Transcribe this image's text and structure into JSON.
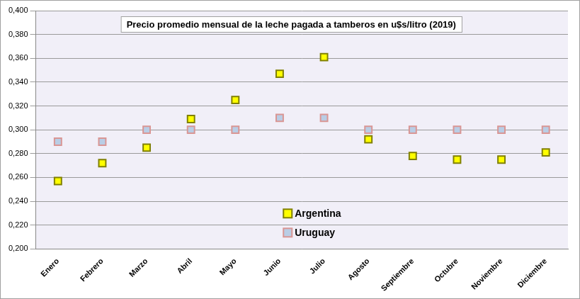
{
  "chart_data": {
    "type": "scatter",
    "title": "Precio promedio mensual de la leche pagada a tamberos en u$s/litro (2019)",
    "categories": [
      "Enero",
      "Febrero",
      "Marzo",
      "Abril",
      "Mayo",
      "Junio",
      "Julio",
      "Agosto",
      "Septiembre",
      "Octubre",
      "Noviembre",
      "Diciembre"
    ],
    "series": [
      {
        "name": "Argentina",
        "color": "#ffff00",
        "marker": "square",
        "values": [
          0.257,
          0.272,
          0.285,
          0.309,
          0.325,
          0.347,
          0.361,
          0.292,
          0.278,
          0.275,
          0.275,
          0.281
        ]
      },
      {
        "name": "Uruguay",
        "color": "#b9cde5",
        "marker": "square",
        "values": [
          0.29,
          0.29,
          0.3,
          0.3,
          0.3,
          0.31,
          0.31,
          0.3,
          0.3,
          0.3,
          0.3,
          0.3
        ]
      }
    ],
    "ylim": [
      0.2,
      0.4
    ],
    "yticks": [
      {
        "value": 0.2,
        "label": "0,200"
      },
      {
        "value": 0.22,
        "label": "0,220"
      },
      {
        "value": 0.24,
        "label": "0,240"
      },
      {
        "value": 0.26,
        "label": "0,260"
      },
      {
        "value": 0.28,
        "label": "0,280"
      },
      {
        "value": 0.3,
        "label": "0,300"
      },
      {
        "value": 0.32,
        "label": "0,320"
      },
      {
        "value": 0.34,
        "label": "0,340"
      },
      {
        "value": 0.36,
        "label": "0,360"
      },
      {
        "value": 0.38,
        "label": "0,380"
      },
      {
        "value": 0.4,
        "label": "0,400"
      }
    ],
    "grid": true,
    "legend": "lower center"
  }
}
